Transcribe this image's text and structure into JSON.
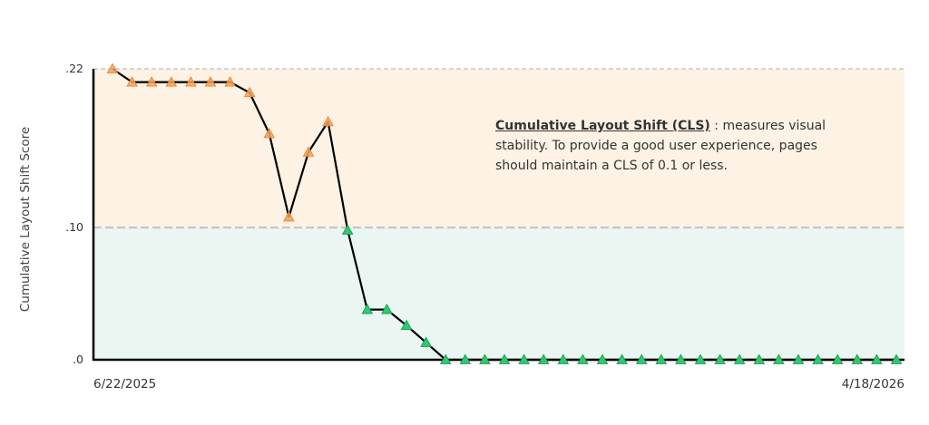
{
  "chart_data": {
    "type": "line",
    "ylabel": "Cumulative Layout Shift Score",
    "y_ticks": [
      {
        "value": 0.22,
        "label": ".22"
      },
      {
        "value": 0.1,
        "label": ".10"
      },
      {
        "value": 0.0,
        "label": ".0"
      }
    ],
    "x_labels": {
      "start": "6/22/2025",
      "end": "4/18/2026"
    },
    "ylim": [
      0,
      0.22
    ],
    "threshold": 0.1,
    "annotation": {
      "title": "Cumulative Layout Shift (CLS)",
      "text": " : measures visual stability. To provide a good user experience, pages should maintain a CLS of 0.1 or less."
    },
    "colors": {
      "bad_zone": "#fdf2e3",
      "good_zone": "#e9f6f1",
      "bad_marker": "#f4a55a",
      "good_marker": "#2ecb6e",
      "line": "#000000"
    },
    "values": [
      0.22,
      0.21,
      0.21,
      0.21,
      0.21,
      0.21,
      0.21,
      0.202,
      0.171,
      0.108,
      0.157,
      0.18,
      0.098,
      0.038,
      0.038,
      0.026,
      0.013,
      0.0,
      0.0,
      0.0,
      0.0,
      0.0,
      0.0,
      0.0,
      0.0,
      0.0,
      0.0,
      0.0,
      0.0,
      0.0,
      0.0,
      0.0,
      0.0,
      0.0,
      0.0,
      0.0,
      0.0,
      0.0,
      0.0,
      0.0,
      0.0
    ]
  }
}
